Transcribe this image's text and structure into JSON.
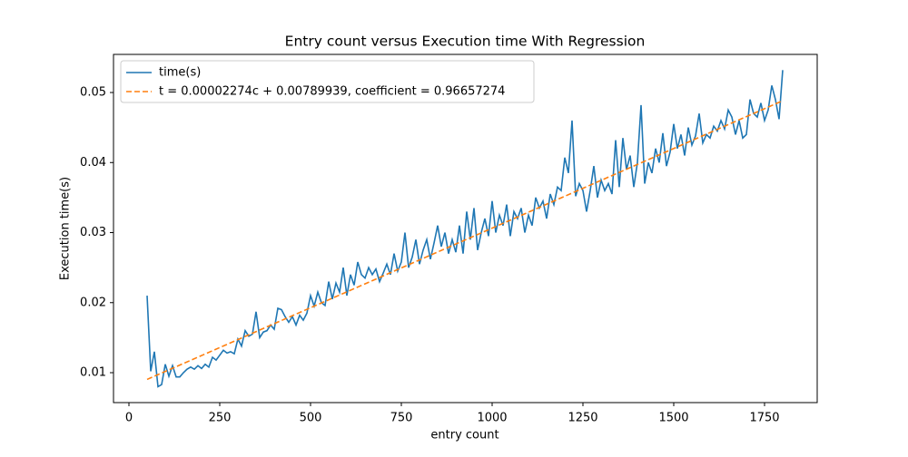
{
  "chart_data": {
    "type": "line",
    "title": "Entry count versus Execution time With Regression",
    "x_label": "entry count",
    "y_label": "Execution time(s)",
    "xlim": [
      -42.5,
      1895
    ],
    "ylim": [
      0.00573,
      0.05544
    ],
    "xticks": [
      0,
      250,
      500,
      750,
      1000,
      1250,
      1500,
      1750
    ],
    "yticks": [
      0.01,
      0.02,
      0.03,
      0.04,
      0.05
    ],
    "legend": "upper left",
    "series": [
      {
        "name": "time(s)",
        "color": "#1f77b4",
        "style": "solid",
        "x": [
          50,
          60,
          70,
          80,
          90,
          100,
          110,
          120,
          130,
          140,
          150,
          160,
          170,
          180,
          190,
          200,
          210,
          220,
          230,
          240,
          250,
          260,
          270,
          280,
          290,
          300,
          310,
          320,
          330,
          340,
          350,
          360,
          370,
          380,
          390,
          400,
          410,
          420,
          430,
          440,
          450,
          460,
          470,
          480,
          490,
          500,
          510,
          520,
          530,
          540,
          550,
          560,
          570,
          580,
          590,
          600,
          610,
          620,
          630,
          640,
          650,
          660,
          670,
          680,
          690,
          700,
          710,
          720,
          730,
          740,
          750,
          760,
          770,
          780,
          790,
          800,
          810,
          820,
          830,
          840,
          850,
          860,
          870,
          880,
          890,
          900,
          910,
          920,
          930,
          940,
          950,
          960,
          970,
          980,
          990,
          1000,
          1010,
          1020,
          1030,
          1040,
          1050,
          1060,
          1070,
          1080,
          1090,
          1100,
          1110,
          1120,
          1130,
          1140,
          1150,
          1160,
          1170,
          1180,
          1190,
          1200,
          1210,
          1220,
          1230,
          1240,
          1250,
          1260,
          1270,
          1280,
          1290,
          1300,
          1310,
          1320,
          1330,
          1340,
          1350,
          1360,
          1370,
          1380,
          1390,
          1400,
          1410,
          1420,
          1430,
          1440,
          1450,
          1460,
          1470,
          1480,
          1490,
          1500,
          1510,
          1520,
          1530,
          1540,
          1550,
          1560,
          1570,
          1580,
          1590,
          1600,
          1610,
          1620,
          1630,
          1640,
          1650,
          1660,
          1670,
          1680,
          1690,
          1700,
          1710,
          1720,
          1730,
          1740,
          1750,
          1760,
          1770,
          1780,
          1790,
          1800
        ],
        "values": [
          0.021,
          0.0102,
          0.013,
          0.008,
          0.0083,
          0.0112,
          0.0095,
          0.011,
          0.0094,
          0.0094,
          0.01,
          0.0105,
          0.0108,
          0.0105,
          0.011,
          0.0106,
          0.0112,
          0.0108,
          0.0122,
          0.0118,
          0.0125,
          0.0132,
          0.0128,
          0.013,
          0.0127,
          0.0148,
          0.0138,
          0.016,
          0.0152,
          0.0155,
          0.0187,
          0.015,
          0.0158,
          0.016,
          0.0168,
          0.0162,
          0.0192,
          0.019,
          0.018,
          0.0172,
          0.018,
          0.0168,
          0.0182,
          0.0175,
          0.0185,
          0.021,
          0.0195,
          0.0215,
          0.02,
          0.0196,
          0.023,
          0.0205,
          0.0228,
          0.0215,
          0.025,
          0.021,
          0.024,
          0.0225,
          0.0258,
          0.024,
          0.0235,
          0.025,
          0.024,
          0.0248,
          0.023,
          0.0242,
          0.0255,
          0.024,
          0.027,
          0.0245,
          0.0258,
          0.03,
          0.025,
          0.0265,
          0.029,
          0.0255,
          0.0275,
          0.029,
          0.0262,
          0.0285,
          0.031,
          0.028,
          0.03,
          0.027,
          0.029,
          0.0272,
          0.031,
          0.027,
          0.033,
          0.029,
          0.0335,
          0.0275,
          0.03,
          0.032,
          0.0295,
          0.0345,
          0.03,
          0.0325,
          0.031,
          0.034,
          0.0295,
          0.033,
          0.032,
          0.0335,
          0.03,
          0.0325,
          0.031,
          0.035,
          0.0335,
          0.0345,
          0.032,
          0.0355,
          0.034,
          0.0365,
          0.036,
          0.0407,
          0.0385,
          0.046,
          0.0352,
          0.037,
          0.036,
          0.033,
          0.036,
          0.0395,
          0.035,
          0.0375,
          0.036,
          0.037,
          0.0355,
          0.0432,
          0.0365,
          0.0435,
          0.039,
          0.041,
          0.0365,
          0.04,
          0.0482,
          0.037,
          0.04,
          0.0385,
          0.042,
          0.04,
          0.0442,
          0.0395,
          0.0415,
          0.0455,
          0.042,
          0.044,
          0.041,
          0.045,
          0.0425,
          0.0438,
          0.047,
          0.0428,
          0.044,
          0.0435,
          0.0452,
          0.0445,
          0.046,
          0.0448,
          0.0475,
          0.0465,
          0.044,
          0.046,
          0.0435,
          0.044,
          0.049,
          0.047,
          0.0465,
          0.0485,
          0.046,
          0.0475,
          0.051,
          0.049,
          0.0462,
          0.0532
        ]
      },
      {
        "name": "t = 0.00002274c + 0.00789939, coefficient = 0.96657274",
        "color": "#ff7f0e",
        "style": "dashed",
        "x": [
          50,
          1800
        ],
        "values": [
          0.00904,
          0.04883
        ]
      }
    ]
  }
}
